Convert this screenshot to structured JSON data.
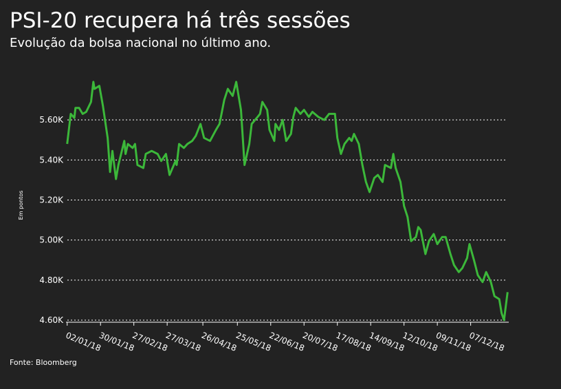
{
  "chart_data": {
    "type": "line",
    "title": "PSI-20 recupera há três sessões",
    "subtitle": "Evolução da bolsa nacional no último ano.",
    "y_label": "Em pontos",
    "source": "Fonte: Bloomberg",
    "grid": true,
    "xlim": [
      "2018-01-01",
      "2019-01-08"
    ],
    "ylim": [
      4600,
      5800
    ],
    "yticks": [
      {
        "value": 4600,
        "label": "4.60K"
      },
      {
        "value": 4800,
        "label": "4.80K"
      },
      {
        "value": 5000,
        "label": "5.00K"
      },
      {
        "value": 5200,
        "label": "5.20K"
      },
      {
        "value": 5400,
        "label": "5.40K"
      },
      {
        "value": 5600,
        "label": "5.60K"
      }
    ],
    "xticks": [
      {
        "value": "2018-01-02",
        "label": "02/01/18"
      },
      {
        "value": "2018-01-30",
        "label": "30/01/18"
      },
      {
        "value": "2018-02-27",
        "label": "27/02/18"
      },
      {
        "value": "2018-03-27",
        "label": "27/03/18"
      },
      {
        "value": "2018-04-26",
        "label": "26/04/18"
      },
      {
        "value": "2018-05-25",
        "label": "25/05/18"
      },
      {
        "value": "2018-06-22",
        "label": "22/06/18"
      },
      {
        "value": "2018-07-20",
        "label": "20/07/18"
      },
      {
        "value": "2018-08-17",
        "label": "17/08/18"
      },
      {
        "value": "2018-09-14",
        "label": "14/09/18"
      },
      {
        "value": "2018-10-12",
        "label": "12/10/18"
      },
      {
        "value": "2018-11-09",
        "label": "09/11/18"
      },
      {
        "value": "2018-12-07",
        "label": "07/12/18"
      }
    ],
    "x": [
      "2018-01-02",
      "2018-01-05",
      "2018-01-08",
      "2018-01-09",
      "2018-01-12",
      "2018-01-15",
      "2018-01-18",
      "2018-01-22",
      "2018-01-24",
      "2018-01-25",
      "2018-01-29",
      "2018-02-01",
      "2018-02-05",
      "2018-02-07",
      "2018-02-09",
      "2018-02-12",
      "2018-02-14",
      "2018-02-19",
      "2018-02-20",
      "2018-02-22",
      "2018-02-26",
      "2018-02-28",
      "2018-03-02",
      "2018-03-07",
      "2018-03-09",
      "2018-03-14",
      "2018-03-19",
      "2018-03-22",
      "2018-03-26",
      "2018-03-29",
      "2018-04-03",
      "2018-04-04",
      "2018-04-06",
      "2018-04-10",
      "2018-04-13",
      "2018-04-17",
      "2018-04-20",
      "2018-04-24",
      "2018-04-27",
      "2018-05-02",
      "2018-05-07",
      "2018-05-10",
      "2018-05-14",
      "2018-05-17",
      "2018-05-21",
      "2018-05-24",
      "2018-05-28",
      "2018-05-31",
      "2018-06-04",
      "2018-06-06",
      "2018-06-11",
      "2018-06-13",
      "2018-06-15",
      "2018-06-19",
      "2018-06-21",
      "2018-06-25",
      "2018-06-26",
      "2018-06-29",
      "2018-07-02",
      "2018-07-05",
      "2018-07-09",
      "2018-07-11",
      "2018-07-13",
      "2018-07-17",
      "2018-07-20",
      "2018-07-24",
      "2018-07-27",
      "2018-08-01",
      "2018-08-06",
      "2018-08-10",
      "2018-08-15",
      "2018-08-17",
      "2018-08-20",
      "2018-08-23",
      "2018-08-27",
      "2018-08-29",
      "2018-08-31",
      "2018-09-04",
      "2018-09-07",
      "2018-09-10",
      "2018-09-13",
      "2018-09-17",
      "2018-09-20",
      "2018-09-24",
      "2018-09-26",
      "2018-10-01",
      "2018-10-03",
      "2018-10-05",
      "2018-10-09",
      "2018-10-12",
      "2018-10-15",
      "2018-10-18",
      "2018-10-22",
      "2018-10-24",
      "2018-10-26",
      "2018-10-30",
      "2018-11-02",
      "2018-11-06",
      "2018-11-09",
      "2018-11-13",
      "2018-11-16",
      "2018-11-20",
      "2018-11-23",
      "2018-11-27",
      "2018-11-30",
      "2018-12-04",
      "2018-12-06",
      "2018-12-10",
      "2018-12-13",
      "2018-12-17",
      "2018-12-20",
      "2018-12-24",
      "2018-12-27",
      "2018-12-31",
      "2019-01-02",
      "2019-01-04",
      "2019-01-07"
    ],
    "series": [
      {
        "name": "PSI-20",
        "color": "#3cb83a",
        "values": [
          5480,
          5630,
          5610,
          5660,
          5660,
          5630,
          5640,
          5690,
          5790,
          5755,
          5770,
          5670,
          5510,
          5340,
          5445,
          5305,
          5375,
          5495,
          5430,
          5480,
          5460,
          5480,
          5375,
          5360,
          5430,
          5445,
          5430,
          5395,
          5430,
          5325,
          5395,
          5375,
          5480,
          5460,
          5480,
          5495,
          5520,
          5580,
          5510,
          5495,
          5550,
          5580,
          5700,
          5755,
          5720,
          5790,
          5650,
          5375,
          5480,
          5580,
          5615,
          5630,
          5690,
          5650,
          5550,
          5495,
          5580,
          5550,
          5600,
          5495,
          5530,
          5615,
          5660,
          5630,
          5650,
          5615,
          5640,
          5615,
          5600,
          5630,
          5630,
          5510,
          5430,
          5480,
          5510,
          5495,
          5530,
          5480,
          5375,
          5290,
          5240,
          5310,
          5325,
          5290,
          5375,
          5360,
          5430,
          5360,
          5290,
          5170,
          5115,
          4995,
          5015,
          5065,
          5050,
          4930,
          4995,
          5030,
          4980,
          5015,
          5015,
          4930,
          4875,
          4840,
          4860,
          4910,
          4980,
          4895,
          4825,
          4790,
          4840,
          4790,
          4720,
          4705,
          4635,
          4600,
          4740
        ]
      }
    ]
  }
}
